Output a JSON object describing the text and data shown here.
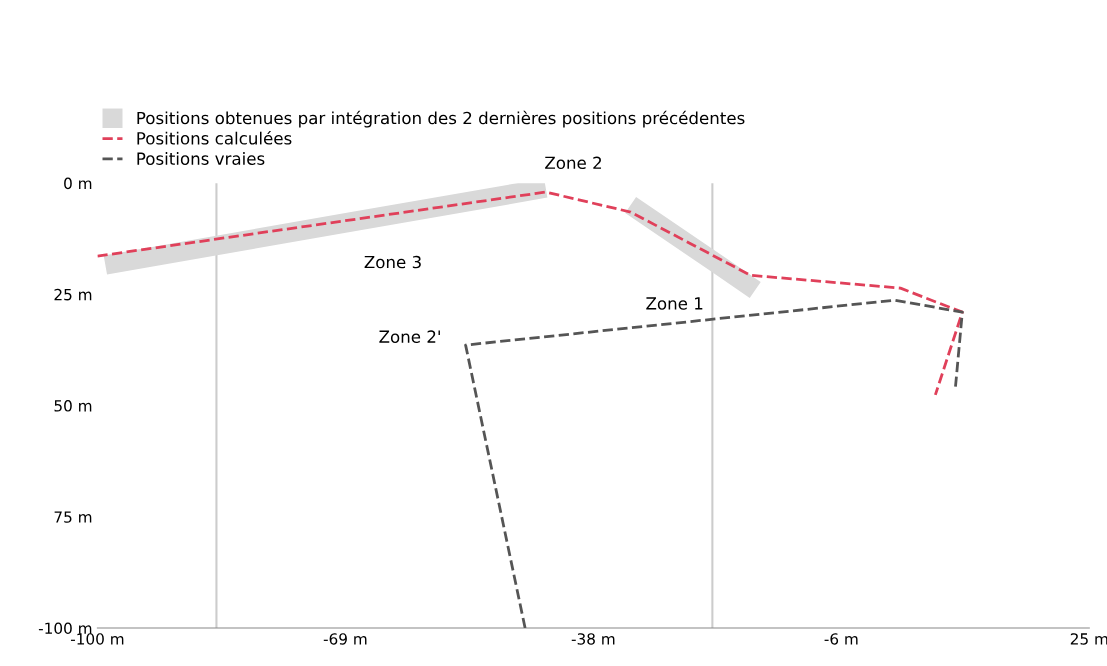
{
  "chart_data": {
    "type": "line",
    "xlim": [
      -100,
      25
    ],
    "ylim": [
      -100,
      0
    ],
    "xticks": [
      {
        "value": -100,
        "label": "-100 m"
      },
      {
        "value": -68.75,
        "label": "-69 m"
      },
      {
        "value": -37.5,
        "label": "-38 m"
      },
      {
        "value": -6.25,
        "label": "-6 m"
      },
      {
        "value": 25,
        "label": "25 m"
      }
    ],
    "yticks": [
      {
        "value": 0,
        "label": "0 m"
      },
      {
        "value": -25,
        "label": "25 m"
      },
      {
        "value": -50,
        "label": "50 m"
      },
      {
        "value": -75,
        "label": "75 m"
      },
      {
        "value": -100,
        "label": "-100 m"
      }
    ],
    "series": [
      {
        "name": "Positions obtenues par intégration des 2 dernières positions précédentes",
        "color": "#d9d9d9",
        "x": [
          -99,
          -68,
          -43.5,
          null,
          -32.8,
          -22,
          -17.1
        ],
        "values": [
          -18.4,
          -8.7,
          -1.1,
          null,
          -4.9,
          -18.0,
          -24.0
        ],
        "line_style": "solid"
      },
      {
        "name": "Positions calculées",
        "color": "#e0405a",
        "x": [
          -100,
          -43.5,
          -32.8,
          -17.7,
          1.2,
          9.0,
          5.6
        ],
        "values": [
          -16.4,
          -2.0,
          -6.5,
          -20.7,
          -23.6,
          -29.0,
          -47.6
        ],
        "line_style": "dashed"
      },
      {
        "name": "Positions vraies",
        "color": "#555555",
        "x": [
          -46.1,
          -53.6,
          0.5,
          9.0,
          8.1
        ],
        "values": [
          -100,
          -36.4,
          -26.3,
          -29.0,
          -46.5
        ],
        "line_style": "dashed"
      }
    ],
    "ref_lines": [
      {
        "axis": "x",
        "value": -85,
        "color": "#cccccc"
      },
      {
        "axis": "x",
        "value": -22.5,
        "color": "#cccccc"
      }
    ],
    "annotations": [
      {
        "text": "Zone 3",
        "x": -68,
        "y": -8.7
      },
      {
        "text": "Zone 1",
        "x": -22,
        "y": -18.0
      },
      {
        "text": "Zone 2",
        "x": -43.5,
        "y": -2.0
      },
      {
        "text": "Zone 2'",
        "x": -53.6,
        "y": -36.4
      }
    ],
    "legend": "top left",
    "grid": false,
    "marker": "none"
  }
}
